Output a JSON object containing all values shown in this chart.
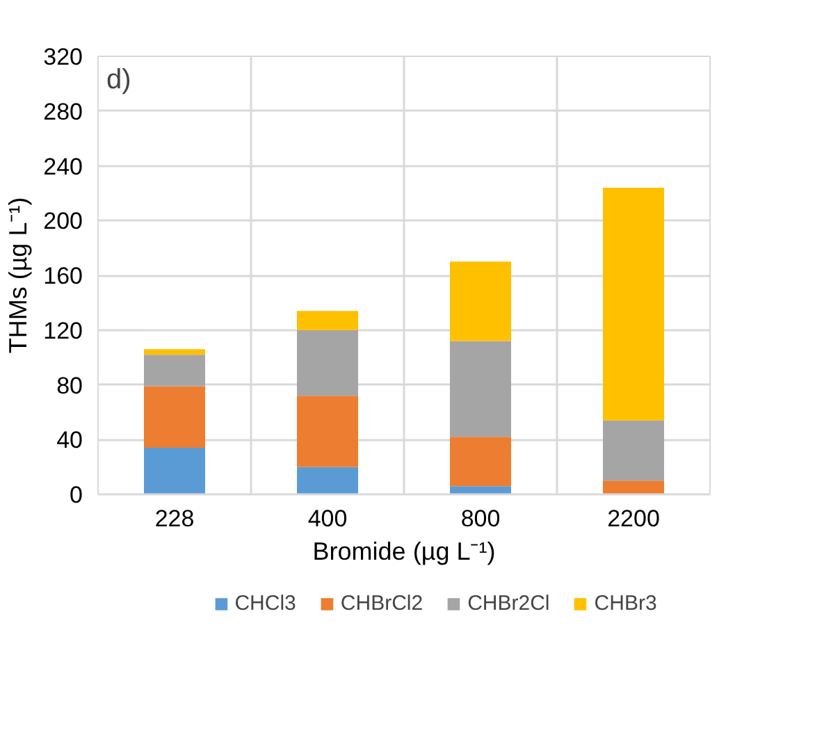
{
  "chart_data": {
    "type": "bar",
    "stacked": true,
    "xlabel": "Bromide (µg L⁻¹)",
    "ylabel": "THMs (µg L⁻¹)",
    "annotations": [
      "d)"
    ],
    "categories": [
      "228",
      "400",
      "800",
      "2200"
    ],
    "series": [
      {
        "name": "CHCl3",
        "color": "#5b9bd5",
        "values": [
          34,
          20,
          6,
          0
        ]
      },
      {
        "name": "CHBrCl2",
        "color": "#ed7d31",
        "values": [
          45,
          52,
          36,
          10
        ]
      },
      {
        "name": "CHBr2Cl",
        "color": "#a5a5a5",
        "values": [
          23,
          48,
          70,
          44
        ]
      },
      {
        "name": "CHBr3",
        "color": "#ffc000",
        "values": [
          4,
          14,
          58,
          170
        ]
      }
    ],
    "ylim": [
      0,
      320
    ],
    "yticks": [
      0,
      40,
      80,
      120,
      160,
      200,
      240,
      280,
      320
    ],
    "grid": true,
    "legend": "bottom"
  }
}
